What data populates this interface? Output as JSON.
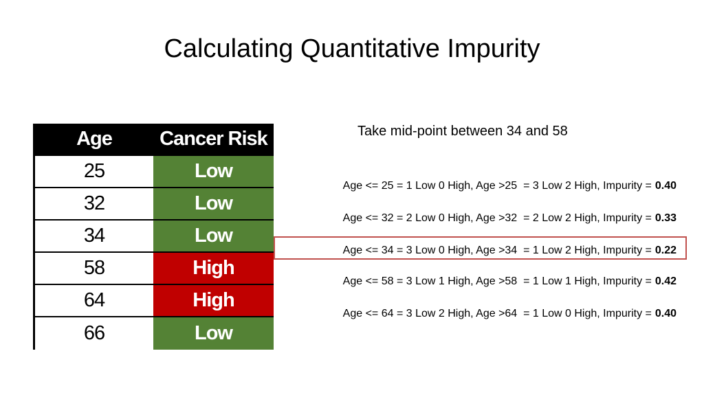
{
  "title": "Calculating Quantitative Impurity",
  "table": {
    "header": [
      "Age",
      "Cancer Risk"
    ],
    "rows": [
      {
        "age": 25,
        "risk": "Low",
        "color": "#548235"
      },
      {
        "age": 32,
        "risk": "Low",
        "color": "#548235"
      },
      {
        "age": 34,
        "risk": "Low",
        "color": "#548235"
      },
      {
        "age": 58,
        "risk": "High",
        "color": "#c00000"
      },
      {
        "age": 64,
        "risk": "High",
        "color": "#c00000"
      },
      {
        "age": 66,
        "risk": "Low",
        "color": "#548235"
      }
    ]
  },
  "note": "Take mid-point between 34 and 58",
  "splits": [
    {
      "text": "Age <= 25 = 1 Low 0 High, Age >25  = 3 Low 2 High, Impurity =",
      "impurity": "0.40",
      "highlight": false
    },
    {
      "text": "Age <= 32 = 2 Low 0 High, Age >32  = 2 Low 2 High, Impurity =",
      "impurity": "0.33",
      "highlight": false
    },
    {
      "text": "Age <= 34 = 3 Low 0 High, Age >34  = 1 Low 2 High, Impurity =",
      "impurity": "0.22",
      "highlight": true
    },
    {
      "text": "Age <= 58 = 3 Low 1 High, Age >58  = 1 Low 1 High, Impurity =",
      "impurity": "0.42",
      "highlight": false
    },
    {
      "text": "Age <= 64 = 3 Low 2 High, Age >64  = 1 Low 0 High, Impurity =",
      "impurity": "0.40",
      "highlight": false
    }
  ]
}
